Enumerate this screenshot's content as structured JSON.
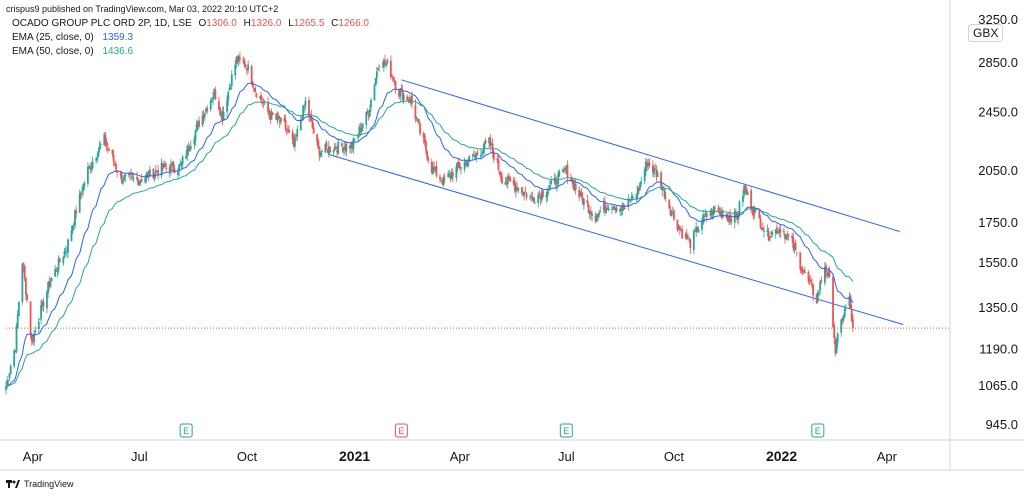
{
  "header": {
    "published": "crispus9 published on TradingView.com, Mar 03, 2022 20:10 UTC+2",
    "symbol_line": "OCADO GROUP PLC ORD 2P, 1D, LSE",
    "ohlc": [
      {
        "k": "O",
        "v": "1306.0"
      },
      {
        "k": "H",
        "v": "1326.0"
      },
      {
        "k": "L",
        "v": "1265.5"
      },
      {
        "k": "C",
        "v": "1266.0"
      }
    ],
    "ema25_label": "EMA (25, close, 0)",
    "ema25_value": "1359.3",
    "ema50_label": "EMA (50, close, 0)",
    "ema50_value": "1436.6"
  },
  "footer": {
    "brand": "TradingView"
  },
  "colors": {
    "up": "#26a69a",
    "down": "#ef5350",
    "ema25": "#2962ff",
    "ema50": "#22ab94",
    "channel": "#2962ff",
    "close_line": "#ef5350",
    "axis_text": "#131722",
    "grid": "#e0e3eb"
  },
  "chart_data": {
    "type": "candlestick",
    "unit": "GBX",
    "y_axis": {
      "scale": "log",
      "ticks": [
        "3250.0",
        "2850.0",
        "2450.0",
        "2050.0",
        "1750.0",
        "1550.0",
        "1350.0",
        "1190.0",
        "1065.0",
        "945.0"
      ],
      "range": [
        900,
        3300
      ]
    },
    "x_axis": {
      "range": [
        "2020-03-09",
        "2022-05-25"
      ],
      "ticks": [
        {
          "date": "2020-04-01",
          "label": "Apr",
          "bold": false
        },
        {
          "date": "2020-07-01",
          "label": "Jul",
          "bold": false
        },
        {
          "date": "2020-10-01",
          "label": "Oct",
          "bold": false
        },
        {
          "date": "2021-01-01",
          "label": "2021",
          "bold": true
        },
        {
          "date": "2021-04-01",
          "label": "Apr",
          "bold": false
        },
        {
          "date": "2021-07-01",
          "label": "Jul",
          "bold": false
        },
        {
          "date": "2021-10-01",
          "label": "Oct",
          "bold": false
        },
        {
          "date": "2022-01-01",
          "label": "2022",
          "bold": true
        },
        {
          "date": "2022-04-01",
          "label": "Apr",
          "bold": false
        }
      ]
    },
    "price_anchors": [
      [
        "2020-03-09",
        1060
      ],
      [
        "2020-03-17",
        1200
      ],
      [
        "2020-03-23",
        1550
      ],
      [
        "2020-03-31",
        1210
      ],
      [
        "2020-04-15",
        1450
      ],
      [
        "2020-04-30",
        1620
      ],
      [
        "2020-05-18",
        2050
      ],
      [
        "2020-06-01",
        2250
      ],
      [
        "2020-06-15",
        2000
      ],
      [
        "2020-07-01",
        1990
      ],
      [
        "2020-07-20",
        2060
      ],
      [
        "2020-08-05",
        2070
      ],
      [
        "2020-08-20",
        2350
      ],
      [
        "2020-09-03",
        2600
      ],
      [
        "2020-09-10",
        2420
      ],
      [
        "2020-09-22",
        2870
      ],
      [
        "2020-10-01",
        2820
      ],
      [
        "2020-10-08",
        2620
      ],
      [
        "2020-10-20",
        2430
      ],
      [
        "2020-11-02",
        2350
      ],
      [
        "2020-11-10",
        2200
      ],
      [
        "2020-11-20",
        2520
      ],
      [
        "2020-12-01",
        2170
      ],
      [
        "2020-12-15",
        2200
      ],
      [
        "2020-12-30",
        2210
      ],
      [
        "2021-01-13",
        2450
      ],
      [
        "2021-01-22",
        2860
      ],
      [
        "2021-01-29",
        2830
      ],
      [
        "2021-02-08",
        2600
      ],
      [
        "2021-02-18",
        2540
      ],
      [
        "2021-02-26",
        2300
      ],
      [
        "2021-03-08",
        2060
      ],
      [
        "2021-03-18",
        1980
      ],
      [
        "2021-03-31",
        2070
      ],
      [
        "2021-04-14",
        2140
      ],
      [
        "2021-04-26",
        2230
      ],
      [
        "2021-05-07",
        2000
      ],
      [
        "2021-05-20",
        1950
      ],
      [
        "2021-06-01",
        1880
      ],
      [
        "2021-06-15",
        1930
      ],
      [
        "2021-07-01",
        2050
      ],
      [
        "2021-07-12",
        1900
      ],
      [
        "2021-07-26",
        1780
      ],
      [
        "2021-08-06",
        1850
      ],
      [
        "2021-08-20",
        1820
      ],
      [
        "2021-09-01",
        1940
      ],
      [
        "2021-09-08",
        2100
      ],
      [
        "2021-09-17",
        2020
      ],
      [
        "2021-09-29",
        1800
      ],
      [
        "2021-10-07",
        1700
      ],
      [
        "2021-10-15",
        1640
      ],
      [
        "2021-10-25",
        1760
      ],
      [
        "2021-11-05",
        1820
      ],
      [
        "2021-11-15",
        1780
      ],
      [
        "2021-11-24",
        1780
      ],
      [
        "2021-11-30",
        1940
      ],
      [
        "2021-12-08",
        1820
      ],
      [
        "2021-12-20",
        1680
      ],
      [
        "2021-12-31",
        1720
      ],
      [
        "2022-01-10",
        1640
      ],
      [
        "2022-01-20",
        1500
      ],
      [
        "2022-01-31",
        1380
      ],
      [
        "2022-02-07",
        1530
      ],
      [
        "2022-02-11",
        1460
      ],
      [
        "2022-02-16",
        1180
      ],
      [
        "2022-02-22",
        1310
      ],
      [
        "2022-02-28",
        1380
      ],
      [
        "2022-03-03",
        1266
      ]
    ],
    "ema25_last": 1359.3,
    "ema50_last": 1436.6,
    "last_close": 1266.0,
    "channel_lines": [
      {
        "start": [
          "2021-02-10",
          2700
        ],
        "end": [
          "2022-04-12",
          1700
        ]
      },
      {
        "start": [
          "2020-12-10",
          2150
        ],
        "end": [
          "2022-04-15",
          1280
        ]
      }
    ],
    "event_markers": [
      {
        "date": "2020-08-10",
        "label": "E",
        "color": "#26a69a"
      },
      {
        "date": "2021-02-10",
        "label": "E",
        "color": "#ef5350"
      },
      {
        "date": "2021-07-01",
        "label": "E",
        "color": "#26a69a"
      },
      {
        "date": "2022-02-01",
        "label": "E",
        "color": "#26a69a"
      }
    ]
  }
}
